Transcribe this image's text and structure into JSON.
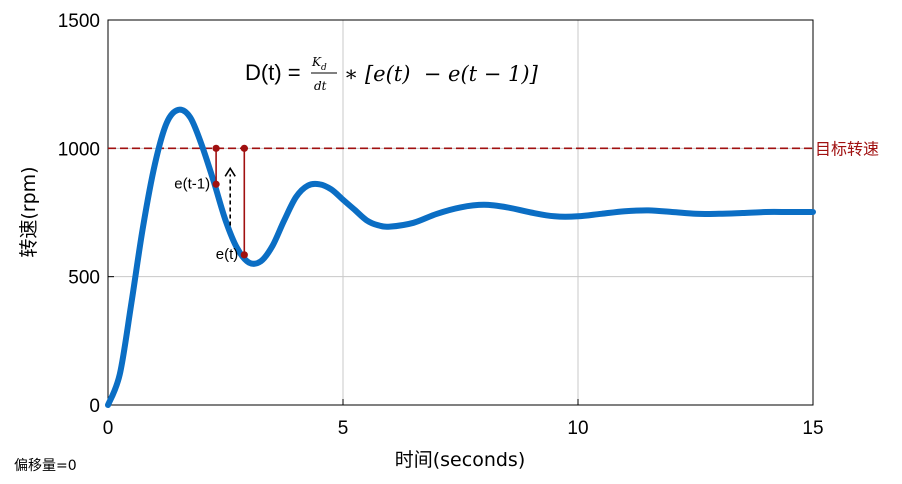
{
  "chart_data": {
    "type": "line",
    "xlabel": "时间(seconds)",
    "ylabel": "转速(rpm)",
    "xlim": [
      0,
      15
    ],
    "ylim": [
      0,
      1500
    ],
    "xticks": [
      "0",
      "5",
      "10",
      "15"
    ],
    "yticks": [
      "0",
      "500",
      "1000",
      "1500"
    ],
    "grid": true,
    "series": [
      {
        "x": [
          0,
          0.25,
          0.5,
          0.75,
          1.0,
          1.25,
          1.5,
          1.75,
          2.0,
          2.25,
          2.5,
          2.75,
          3.0,
          3.25,
          3.5,
          3.75,
          4.0,
          4.25,
          4.5,
          4.75,
          5.0,
          5.25,
          5.5,
          5.75,
          6.0,
          6.5,
          7.0,
          7.5,
          8.0,
          8.5,
          9.0,
          9.5,
          10.0,
          10.5,
          11.0,
          11.5,
          12.0,
          12.5,
          13.0,
          13.5,
          14.0,
          14.5,
          15.0
        ],
        "y": [
          0,
          120,
          400,
          700,
          940,
          1100,
          1150,
          1120,
          1010,
          870,
          720,
          610,
          555,
          560,
          620,
          720,
          810,
          855,
          860,
          840,
          800,
          760,
          720,
          700,
          695,
          710,
          745,
          770,
          780,
          770,
          750,
          735,
          735,
          745,
          755,
          758,
          752,
          745,
          745,
          748,
          752,
          752,
          752
        ],
        "color": "#0b6ec4"
      }
    ],
    "target": {
      "value": 1000,
      "label": "目标转速",
      "color": "#a01010"
    },
    "annotations": {
      "formula": {
        "lhs": "D(t) =",
        "num": "K",
        "num_sub": "d",
        "den": "dt",
        "rhs": "∗ [e(t)  − e(t − 1)]"
      },
      "points": [
        {
          "label": "e(t-1)",
          "x": 2.3,
          "y": 860
        },
        {
          "label": "e(t)",
          "x": 2.9,
          "y": 585
        }
      ]
    }
  },
  "note": "偏移量=0"
}
